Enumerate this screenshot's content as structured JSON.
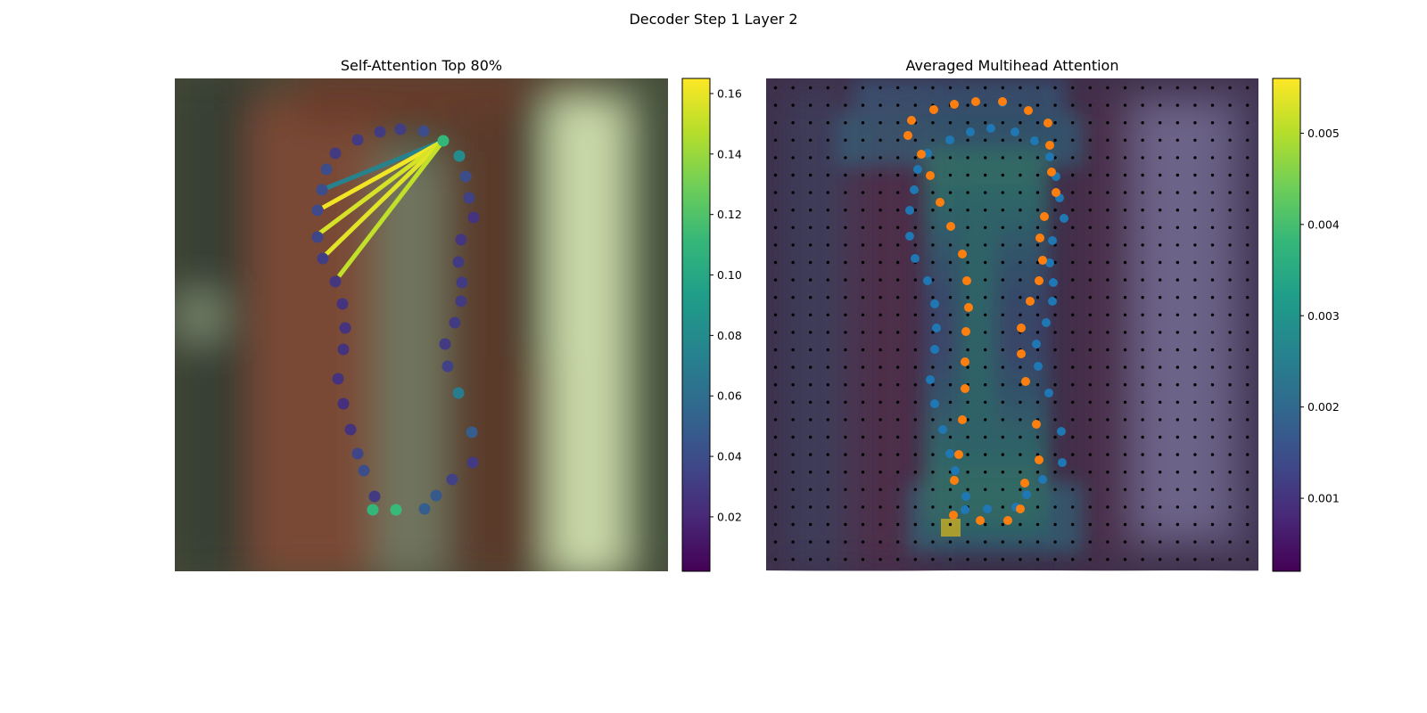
{
  "figure_title": "Decoder Step 1 Layer 2",
  "colors": {
    "viridis": [
      "#440154",
      "#482878",
      "#3e4a89",
      "#31688e",
      "#26828e",
      "#1f9e89",
      "#35b779",
      "#6ece58",
      "#b5de2b",
      "#fde725"
    ],
    "blue_points": "#1f77b4",
    "orange_points": "#ff7f0e",
    "grid_dots": "#000000"
  },
  "chart_data": [
    {
      "type": "scatter",
      "title": "Self-Attention Top 80%",
      "background": "blurred-photo",
      "colorbar": {
        "min": 0.002,
        "max": 0.165,
        "ticks": [
          "0.02",
          "0.04",
          "0.06",
          "0.08",
          "0.10",
          "0.12",
          "0.14",
          "0.16"
        ],
        "tick_values": [
          0.02,
          0.04,
          0.06,
          0.08,
          0.1,
          0.12,
          0.14,
          0.16
        ],
        "colormap": "viridis"
      },
      "points": [
        {
          "x": 497,
          "y": 158,
          "v": 0.11
        },
        {
          "x": 475,
          "y": 147,
          "v": 0.04
        },
        {
          "x": 449,
          "y": 145,
          "v": 0.032
        },
        {
          "x": 426,
          "y": 148,
          "v": 0.03
        },
        {
          "x": 401,
          "y": 157,
          "v": 0.03
        },
        {
          "x": 376,
          "y": 172,
          "v": 0.03
        },
        {
          "x": 366,
          "y": 190,
          "v": 0.04
        },
        {
          "x": 361,
          "y": 213,
          "v": 0.04
        },
        {
          "x": 356,
          "y": 236,
          "v": 0.038
        },
        {
          "x": 356,
          "y": 266,
          "v": 0.036
        },
        {
          "x": 362,
          "y": 290,
          "v": 0.032
        },
        {
          "x": 376,
          "y": 316,
          "v": 0.028
        },
        {
          "x": 384,
          "y": 341,
          "v": 0.026
        },
        {
          "x": 387,
          "y": 368,
          "v": 0.026
        },
        {
          "x": 385,
          "y": 392,
          "v": 0.026
        },
        {
          "x": 379,
          "y": 425,
          "v": 0.026
        },
        {
          "x": 385,
          "y": 453,
          "v": 0.024
        },
        {
          "x": 393,
          "y": 482,
          "v": 0.026
        },
        {
          "x": 401,
          "y": 509,
          "v": 0.036
        },
        {
          "x": 408,
          "y": 528,
          "v": 0.04
        },
        {
          "x": 420,
          "y": 557,
          "v": 0.03
        },
        {
          "x": 418,
          "y": 572,
          "v": 0.11
        },
        {
          "x": 444,
          "y": 572,
          "v": 0.112
        },
        {
          "x": 476,
          "y": 571,
          "v": 0.05
        },
        {
          "x": 489,
          "y": 556,
          "v": 0.048
        },
        {
          "x": 507,
          "y": 538,
          "v": 0.034
        },
        {
          "x": 530,
          "y": 519,
          "v": 0.03
        },
        {
          "x": 529,
          "y": 485,
          "v": 0.05
        },
        {
          "x": 514,
          "y": 441,
          "v": 0.07
        },
        {
          "x": 502,
          "y": 411,
          "v": 0.034
        },
        {
          "x": 499,
          "y": 386,
          "v": 0.03
        },
        {
          "x": 510,
          "y": 362,
          "v": 0.03
        },
        {
          "x": 517,
          "y": 338,
          "v": 0.03
        },
        {
          "x": 518,
          "y": 317,
          "v": 0.03
        },
        {
          "x": 514,
          "y": 294,
          "v": 0.03
        },
        {
          "x": 517,
          "y": 269,
          "v": 0.028
        },
        {
          "x": 531,
          "y": 244,
          "v": 0.026
        },
        {
          "x": 526,
          "y": 222,
          "v": 0.034
        },
        {
          "x": 522,
          "y": 198,
          "v": 0.04
        },
        {
          "x": 515,
          "y": 175,
          "v": 0.08
        }
      ],
      "edges": [
        {
          "from": [
            497,
            158
          ],
          "to": [
            361,
            213
          ],
          "v": 0.075
        },
        {
          "from": [
            497,
            158
          ],
          "to": [
            362,
            233
          ],
          "v": 0.162
        },
        {
          "from": [
            497,
            158
          ],
          "to": [
            358,
            262
          ],
          "v": 0.155
        },
        {
          "from": [
            497,
            158
          ],
          "to": [
            364,
            287
          ],
          "v": 0.158
        },
        {
          "from": [
            497,
            158
          ],
          "to": [
            380,
            310
          ],
          "v": 0.15
        }
      ]
    },
    {
      "type": "scatter",
      "title": "Averaged Multihead Attention",
      "background": "attention-heatmap-over-photo",
      "colorbar": {
        "min": 0.0002,
        "max": 0.0056,
        "ticks": [
          "0.001",
          "0.002",
          "0.003",
          "0.004",
          "0.005"
        ],
        "tick_values": [
          0.001,
          0.002,
          0.003,
          0.004,
          0.005
        ],
        "colormap": "viridis"
      },
      "grid": {
        "cols": 28,
        "rows": 28
      },
      "series": [
        {
          "color": "blue",
          "points": [
            [
              1124,
              115
            ],
            [
              1111,
              144
            ],
            [
              1088,
              148
            ],
            [
              1065,
              157
            ],
            [
              1040,
              172
            ],
            [
              1029,
              190
            ],
            [
              1025,
              213
            ],
            [
              1020,
              236
            ],
            [
              1020,
              265
            ],
            [
              1026,
              290
            ],
            [
              1040,
              315
            ],
            [
              1048,
              341
            ],
            [
              1050,
              368
            ],
            [
              1048,
              392
            ],
            [
              1043,
              426
            ],
            [
              1048,
              453
            ],
            [
              1057,
              482
            ],
            [
              1065,
              509
            ],
            [
              1071,
              528
            ],
            [
              1083,
              557
            ],
            [
              1082,
              572
            ],
            [
              1107,
              571
            ],
            [
              1139,
              569
            ],
            [
              1151,
              555
            ],
            [
              1169,
              538
            ],
            [
              1191,
              519
            ],
            [
              1190,
              484
            ],
            [
              1176,
              441
            ],
            [
              1164,
              411
            ],
            [
              1162,
              386
            ],
            [
              1173,
              362
            ],
            [
              1180,
              338
            ],
            [
              1181,
              317
            ],
            [
              1177,
              295
            ],
            [
              1180,
              270
            ],
            [
              1193,
              245
            ],
            [
              1188,
              222
            ],
            [
              1184,
              198
            ],
            [
              1177,
              176
            ],
            [
              1160,
              158
            ],
            [
              1138,
              148
            ]
          ]
        },
        {
          "color": "orange",
          "points": [
            [
              1022,
              135
            ],
            [
              1047,
              123
            ],
            [
              1070,
              117
            ],
            [
              1094,
              114
            ],
            [
              1124,
              114
            ],
            [
              1153,
              124
            ],
            [
              1175,
              138
            ],
            [
              1177,
              163
            ],
            [
              1179,
              193
            ],
            [
              1184,
              216
            ],
            [
              1171,
              243
            ],
            [
              1166,
              267
            ],
            [
              1169,
              292
            ],
            [
              1165,
              315
            ],
            [
              1155,
              338
            ],
            [
              1145,
              368
            ],
            [
              1145,
              397
            ],
            [
              1150,
              428
            ],
            [
              1162,
              476
            ],
            [
              1165,
              516
            ],
            [
              1149,
              542
            ],
            [
              1144,
              571
            ],
            [
              1130,
              584
            ],
            [
              1099,
              584
            ],
            [
              1069,
              578
            ],
            [
              1070,
              539
            ],
            [
              1075,
              510
            ],
            [
              1079,
              471
            ],
            [
              1082,
              436
            ],
            [
              1082,
              406
            ],
            [
              1083,
              372
            ],
            [
              1086,
              345
            ],
            [
              1084,
              315
            ],
            [
              1079,
              285
            ],
            [
              1066,
              254
            ],
            [
              1054,
              227
            ],
            [
              1043,
              197
            ],
            [
              1033,
              173
            ],
            [
              1018,
              152
            ]
          ]
        }
      ]
    }
  ]
}
